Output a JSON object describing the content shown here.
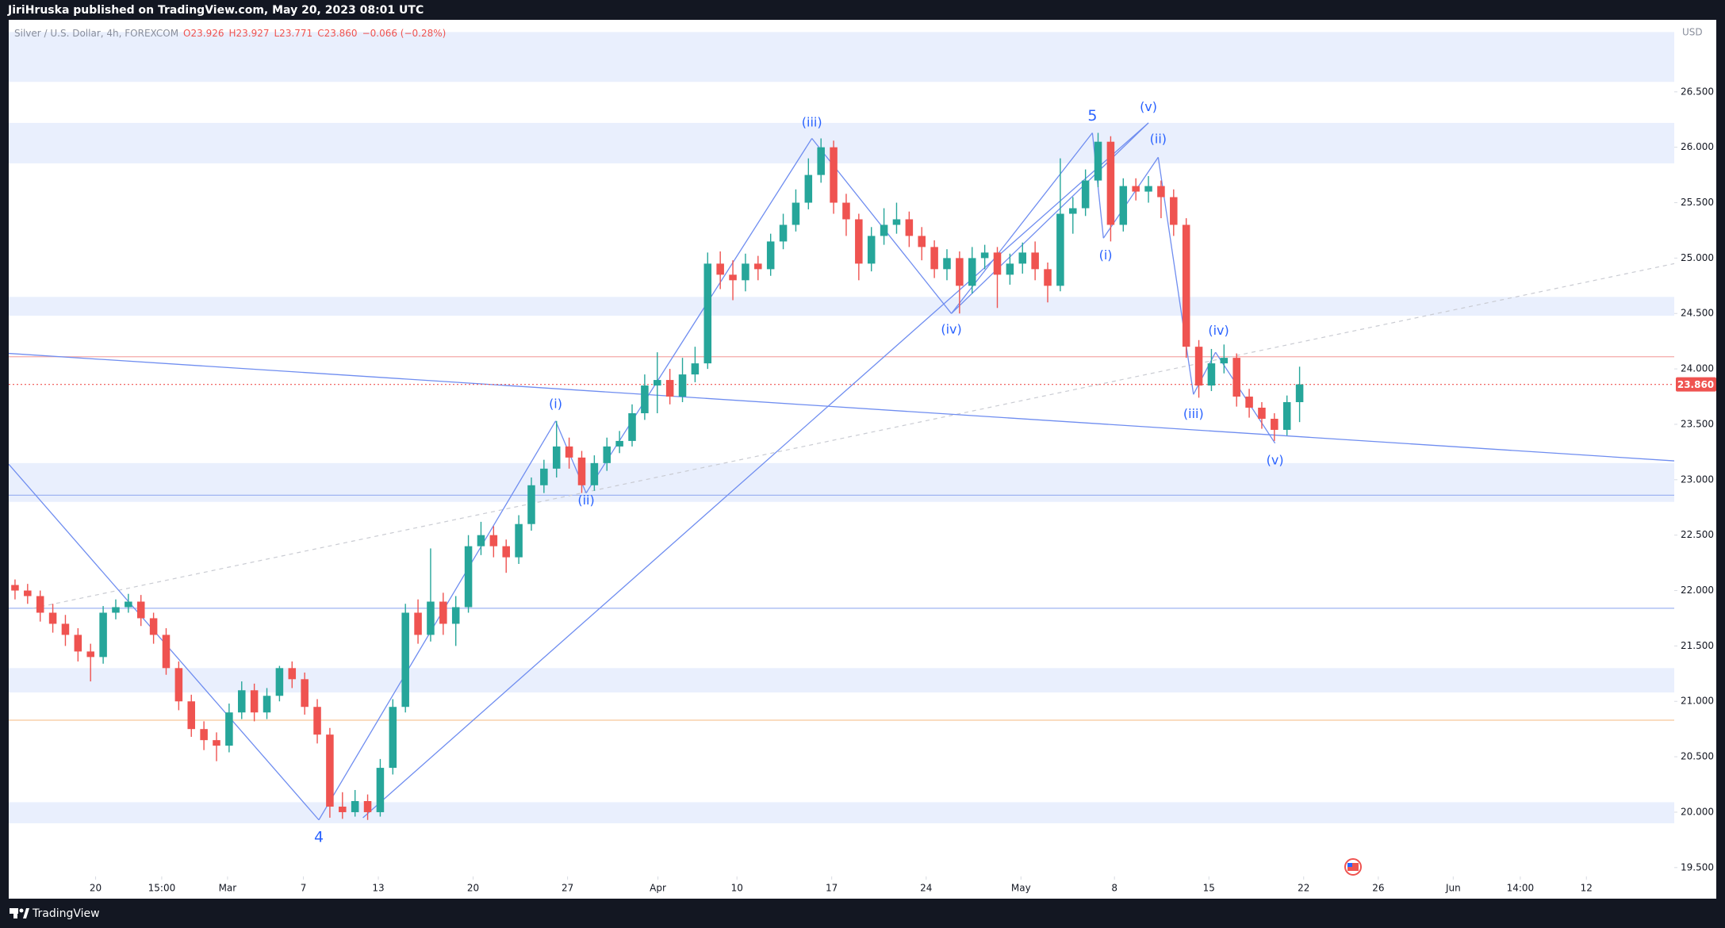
{
  "header": {
    "publisher": "JiriHruska published on TradingView.com, May 20, 2023 08:01 UTC"
  },
  "footer": {
    "brand": "TradingView"
  },
  "chart_data": {
    "type": "candlestick",
    "symbol": "Silver / U.S. Dollar, 4h, FOREXCOM",
    "legend_values": [
      "O23.926",
      "H23.927",
      "L23.771",
      "C23.860",
      "−0.066 (−0.28%)"
    ],
    "currency": "USD",
    "up_color": "#26a69a",
    "down_color": "#ef5350",
    "x": [
      0,
      4,
      8,
      12,
      16,
      20,
      24,
      28,
      32,
      36,
      40,
      44,
      48,
      52,
      56,
      60,
      64,
      68,
      72,
      76,
      80,
      84,
      88,
      92,
      96,
      100,
      104,
      108,
      112,
      116,
      120,
      124,
      128,
      132,
      136,
      140,
      144,
      148,
      152,
      156,
      160,
      164,
      168,
      172,
      176,
      180,
      184,
      188,
      192,
      196,
      200,
      204,
      208,
      212,
      216,
      220,
      224,
      228,
      232,
      236,
      240,
      244,
      248,
      252,
      256,
      260,
      264,
      268,
      272,
      276,
      280,
      284,
      288,
      292,
      296,
      300,
      304,
      308,
      312,
      316,
      320,
      324,
      328,
      332,
      336,
      340,
      344,
      348,
      352,
      356,
      360,
      364,
      368,
      372,
      376,
      380,
      384,
      388,
      392,
      396,
      400,
      404,
      408
    ],
    "open": [
      22.05,
      22.0,
      21.95,
      21.8,
      21.7,
      21.6,
      21.45,
      21.4,
      21.8,
      21.85,
      21.9,
      21.75,
      21.6,
      21.3,
      21.0,
      20.75,
      20.65,
      20.6,
      20.9,
      21.1,
      20.9,
      21.05,
      21.3,
      21.2,
      20.95,
      20.7,
      20.05,
      20.0,
      20.1,
      20.0,
      20.4,
      20.95,
      21.8,
      21.6,
      21.9,
      21.7,
      21.85,
      22.4,
      22.5,
      22.4,
      22.3,
      22.6,
      22.95,
      23.1,
      23.3,
      23.2,
      22.95,
      23.15,
      23.3,
      23.35,
      23.6,
      23.85,
      23.9,
      23.75,
      23.95,
      24.05,
      24.95,
      24.85,
      24.8,
      24.95,
      24.9,
      25.15,
      25.3,
      25.5,
      25.75,
      26.0,
      25.5,
      25.35,
      24.95,
      25.2,
      25.3,
      25.35,
      25.2,
      25.1,
      24.9,
      25.0,
      24.75,
      25.0,
      25.05,
      24.85,
      24.95,
      25.05,
      24.9,
      24.75,
      25.4,
      25.45,
      25.7,
      26.05,
      25.3,
      25.65,
      25.6,
      25.65,
      25.55,
      25.3,
      24.2,
      23.85,
      24.05,
      24.1,
      23.75,
      23.65,
      23.55,
      23.45,
      23.7
    ],
    "high": [
      22.1,
      22.06,
      22.0,
      21.88,
      21.78,
      21.66,
      21.52,
      21.86,
      21.92,
      21.97,
      21.96,
      21.8,
      21.66,
      21.36,
      21.06,
      20.82,
      20.72,
      20.98,
      21.18,
      21.16,
      21.12,
      21.32,
      21.36,
      21.26,
      21.02,
      20.76,
      20.18,
      20.2,
      20.16,
      20.48,
      21.02,
      21.88,
      21.92,
      22.38,
      21.98,
      21.95,
      22.5,
      22.62,
      22.58,
      22.46,
      22.68,
      23.02,
      23.18,
      23.53,
      23.38,
      23.26,
      23.22,
      23.38,
      23.44,
      23.68,
      23.95,
      24.15,
      24.0,
      24.1,
      24.2,
      25.05,
      25.06,
      24.98,
      25.04,
      25.02,
      25.22,
      25.4,
      25.62,
      25.9,
      26.08,
      26.06,
      25.58,
      25.4,
      25.28,
      25.45,
      25.5,
      25.42,
      25.28,
      25.16,
      25.08,
      25.06,
      25.1,
      25.12,
      25.1,
      25.04,
      25.14,
      25.15,
      24.96,
      25.9,
      25.55,
      25.8,
      26.13,
      26.1,
      25.72,
      25.72,
      25.74,
      25.7,
      25.62,
      25.36,
      24.26,
      24.18,
      24.22,
      24.14,
      23.82,
      23.7,
      23.6,
      23.76,
      24.02
    ],
    "low": [
      21.92,
      21.88,
      21.72,
      21.62,
      21.5,
      21.36,
      21.18,
      21.34,
      21.74,
      21.8,
      21.68,
      21.52,
      21.24,
      20.92,
      20.68,
      20.56,
      20.46,
      20.54,
      20.84,
      20.82,
      20.84,
      21.0,
      21.12,
      20.88,
      20.62,
      19.95,
      19.94,
      19.96,
      19.93,
      19.96,
      20.34,
      20.9,
      21.52,
      21.54,
      21.6,
      21.5,
      21.8,
      22.32,
      22.3,
      22.16,
      22.24,
      22.54,
      22.88,
      23.02,
      23.1,
      22.88,
      22.9,
      23.08,
      23.24,
      23.3,
      23.54,
      23.6,
      23.68,
      23.7,
      23.88,
      24.0,
      24.72,
      24.62,
      24.7,
      24.8,
      24.84,
      25.08,
      25.24,
      25.44,
      25.68,
      25.4,
      25.2,
      24.8,
      24.88,
      25.12,
      25.22,
      25.1,
      24.98,
      24.82,
      24.8,
      24.5,
      24.68,
      24.9,
      24.55,
      24.76,
      24.86,
      24.8,
      24.6,
      24.7,
      25.22,
      25.38,
      25.64,
      25.15,
      25.24,
      25.52,
      25.5,
      25.36,
      25.2,
      24.1,
      23.74,
      23.8,
      23.96,
      23.66,
      23.56,
      23.46,
      23.35,
      23.4,
      23.52
    ],
    "close": [
      22.0,
      21.95,
      21.8,
      21.7,
      21.6,
      21.45,
      21.4,
      21.8,
      21.85,
      21.9,
      21.75,
      21.6,
      21.3,
      21.0,
      20.75,
      20.65,
      20.6,
      20.9,
      21.1,
      20.9,
      21.05,
      21.3,
      21.2,
      20.95,
      20.7,
      20.05,
      20.0,
      20.1,
      20.0,
      20.4,
      20.95,
      21.8,
      21.6,
      21.9,
      21.7,
      21.85,
      22.4,
      22.5,
      22.4,
      22.3,
      22.6,
      22.95,
      23.1,
      23.3,
      23.2,
      22.95,
      23.15,
      23.3,
      23.35,
      23.6,
      23.85,
      23.9,
      23.75,
      23.95,
      24.05,
      24.95,
      24.85,
      24.8,
      24.95,
      24.9,
      25.15,
      25.3,
      25.5,
      25.75,
      26.0,
      25.5,
      25.35,
      24.95,
      25.2,
      25.3,
      25.35,
      25.2,
      25.1,
      24.9,
      25.0,
      24.75,
      25.0,
      25.05,
      24.85,
      24.95,
      25.05,
      24.9,
      24.75,
      25.4,
      25.45,
      25.7,
      26.05,
      25.3,
      25.65,
      25.6,
      25.65,
      25.55,
      25.3,
      24.2,
      23.85,
      24.05,
      24.1,
      23.75,
      23.65,
      23.55,
      23.45,
      23.7,
      23.86
    ],
    "xlim": [
      -2,
      527
    ],
    "ylim": [
      19.42,
      27.15
    ],
    "xticks": [
      {
        "value": 25.6,
        "label": "20"
      },
      {
        "value": 46.6,
        "label": "15:00"
      },
      {
        "value": 67.5,
        "label": "Mar"
      },
      {
        "value": 91.6,
        "label": "7"
      },
      {
        "value": 115.4,
        "label": "13"
      },
      {
        "value": 145.5,
        "label": "20"
      },
      {
        "value": 175.5,
        "label": "27"
      },
      {
        "value": 204.2,
        "label": "Apr"
      },
      {
        "value": 229.3,
        "label": "10"
      },
      {
        "value": 259.4,
        "label": "17"
      },
      {
        "value": 289.4,
        "label": "24"
      },
      {
        "value": 319.5,
        "label": "May"
      },
      {
        "value": 349.2,
        "label": "8"
      },
      {
        "value": 379.2,
        "label": "15"
      },
      {
        "value": 409.3,
        "label": "22"
      },
      {
        "value": 433,
        "label": "26"
      },
      {
        "value": 456.8,
        "label": "Jun"
      },
      {
        "value": 478.1,
        "label": "14:00"
      },
      {
        "value": 499.1,
        "label": "12"
      }
    ],
    "yticks": [
      {
        "value": 19.5,
        "label": "19.500"
      },
      {
        "value": 20,
        "label": "20.000"
      },
      {
        "value": 20.5,
        "label": "20.500"
      },
      {
        "value": 21,
        "label": "21.000"
      },
      {
        "value": 21.5,
        "label": "21.500"
      },
      {
        "value": 22,
        "label": "22.000"
      },
      {
        "value": 22.5,
        "label": "22.500"
      },
      {
        "value": 23,
        "label": "23.000"
      },
      {
        "value": 23.5,
        "label": "23.500"
      },
      {
        "value": 24,
        "label": "24.000"
      },
      {
        "value": 24.5,
        "label": "24.500"
      },
      {
        "value": 25,
        "label": "25.000"
      },
      {
        "value": 25.5,
        "label": "25.500"
      },
      {
        "value": 26,
        "label": "26.000"
      },
      {
        "value": 26.5,
        "label": "26.500"
      }
    ],
    "grid": false,
    "zones": [
      [
        26.59,
        27.04
      ],
      [
        25.855,
        26.22
      ],
      [
        24.48,
        24.65
      ],
      [
        22.8,
        23.15
      ],
      [
        21.08,
        21.3
      ],
      [
        19.9,
        20.09
      ]
    ],
    "zone_color": "#e9effd",
    "levels": [
      {
        "value": 24.11,
        "color": "#f4aaa8"
      },
      {
        "value": 22.86,
        "color": "#9fb4f2"
      },
      {
        "value": 21.84,
        "color": "#9fb4f2"
      },
      {
        "value": 20.83,
        "color": "#f6c89a"
      }
    ],
    "last_price": {
      "value": 23.86,
      "label": "23.860",
      "color": "#ef5350"
    },
    "trendline_color": "#6f8df0",
    "trendlines": [
      [
        -2,
        24.14,
        527,
        23.17
      ],
      [
        -2,
        23.14,
        96.5,
        19.93
      ],
      [
        96.5,
        19.93,
        171.7,
        23.53
      ],
      [
        171.7,
        23.53,
        181.4,
        22.88
      ],
      [
        181.4,
        22.88,
        253.1,
        26.08
      ],
      [
        253.1,
        26.08,
        297.4,
        24.5
      ],
      [
        297.4,
        24.5,
        342.2,
        26.13
      ],
      [
        342.2,
        26.13,
        345.7,
        25.18
      ],
      [
        345.7,
        25.18,
        363.1,
        25.91
      ],
      [
        363.1,
        25.91,
        374.3,
        23.77
      ],
      [
        374.3,
        23.77,
        381.3,
        24.15
      ],
      [
        381.3,
        24.15,
        400.2,
        23.33
      ],
      [
        110.5,
        19.95,
        360,
        26.22
      ],
      [
        297.4,
        24.5,
        360,
        26.22
      ]
    ],
    "dashed_line": [
      5.7,
      21.84,
      527,
      24.95
    ],
    "annotation_color": "#2962ff",
    "annotations": [
      {
        "text": "4",
        "x": 96.5,
        "y": 19.77
      },
      {
        "text": "(i)",
        "x": 171.7,
        "y": 23.68
      },
      {
        "text": "(ii)",
        "x": 181.4,
        "y": 22.81
      },
      {
        "text": "(iii)",
        "x": 253.1,
        "y": 26.22
      },
      {
        "text": "(iv)",
        "x": 297.4,
        "y": 24.35
      },
      {
        "text": "5",
        "x": 342.2,
        "y": 26.28
      },
      {
        "text": "(v)",
        "x": 360,
        "y": 26.36
      },
      {
        "text": "(ii)",
        "x": 363.1,
        "y": 26.07
      },
      {
        "text": "(i)",
        "x": 346.4,
        "y": 25.02
      },
      {
        "text": "(iv)",
        "x": 382.3,
        "y": 24.34
      },
      {
        "text": "(iii)",
        "x": 374.3,
        "y": 23.59
      },
      {
        "text": "(v)",
        "x": 400.2,
        "y": 23.17
      }
    ]
  }
}
